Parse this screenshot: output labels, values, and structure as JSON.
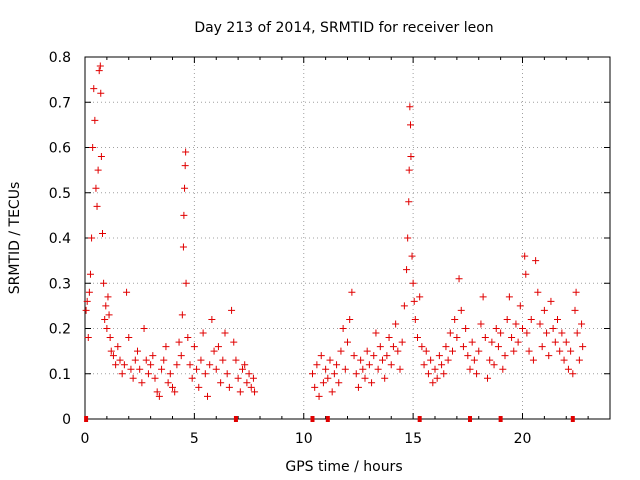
{
  "chart_data": {
    "type": "scatter",
    "title": "Day 213 of 2014, SRMTID for receiver leon",
    "xlabel": "GPS time / hours",
    "ylabel": "SRMTID / TECUs",
    "xlim": [
      0,
      24
    ],
    "ylim": [
      0,
      0.8
    ],
    "grid": true,
    "marker": "plus",
    "colors": {
      "series": "#e00000",
      "axis": "#000000",
      "grid": "#a0a0a0"
    },
    "x_ticks": [
      {
        "value": 0,
        "label": "0"
      },
      {
        "value": 5,
        "label": "5"
      },
      {
        "value": 10,
        "label": "10"
      },
      {
        "value": 15,
        "label": "15"
      },
      {
        "value": 20,
        "label": "20"
      }
    ],
    "y_ticks": [
      {
        "value": 0,
        "label": "0"
      },
      {
        "value": 0.1,
        "label": "0.1"
      },
      {
        "value": 0.2,
        "label": "0.2"
      },
      {
        "value": 0.3,
        "label": "0.3"
      },
      {
        "value": 0.4,
        "label": "0.4"
      },
      {
        "value": 0.5,
        "label": "0.5"
      },
      {
        "value": 0.6,
        "label": "0.6"
      },
      {
        "value": 0.7,
        "label": "0.7"
      },
      {
        "value": 0.8,
        "label": "0.8"
      }
    ],
    "baseline_markers_x": [
      0.05,
      6.9,
      10.4,
      11.1,
      15.3,
      17.6,
      19.0,
      22.3
    ],
    "series": [
      {
        "name": "SRMTID",
        "points": [
          [
            0.05,
            0.24
          ],
          [
            0.1,
            0.26
          ],
          [
            0.15,
            0.18
          ],
          [
            0.2,
            0.28
          ],
          [
            0.25,
            0.32
          ],
          [
            0.3,
            0.4
          ],
          [
            0.35,
            0.6
          ],
          [
            0.4,
            0.73
          ],
          [
            0.45,
            0.66
          ],
          [
            0.5,
            0.51
          ],
          [
            0.55,
            0.47
          ],
          [
            0.6,
            0.55
          ],
          [
            0.65,
            0.77
          ],
          [
            0.7,
            0.78
          ],
          [
            0.72,
            0.72
          ],
          [
            0.75,
            0.58
          ],
          [
            0.8,
            0.41
          ],
          [
            0.85,
            0.3
          ],
          [
            0.9,
            0.22
          ],
          [
            0.95,
            0.25
          ],
          [
            1.0,
            0.2
          ],
          [
            1.05,
            0.27
          ],
          [
            1.1,
            0.23
          ],
          [
            1.15,
            0.18
          ],
          [
            1.2,
            0.15
          ],
          [
            1.3,
            0.14
          ],
          [
            1.4,
            0.12
          ],
          [
            1.5,
            0.16
          ],
          [
            1.6,
            0.13
          ],
          [
            1.7,
            0.1
          ],
          [
            1.8,
            0.12
          ],
          [
            1.9,
            0.28
          ],
          [
            2.0,
            0.18
          ],
          [
            2.1,
            0.11
          ],
          [
            2.2,
            0.09
          ],
          [
            2.3,
            0.13
          ],
          [
            2.4,
            0.15
          ],
          [
            2.5,
            0.11
          ],
          [
            2.6,
            0.08
          ],
          [
            2.7,
            0.2
          ],
          [
            2.8,
            0.13
          ],
          [
            2.9,
            0.1
          ],
          [
            3.0,
            0.12
          ],
          [
            3.1,
            0.14
          ],
          [
            3.2,
            0.09
          ],
          [
            3.3,
            0.06
          ],
          [
            3.4,
            0.05
          ],
          [
            3.5,
            0.11
          ],
          [
            3.6,
            0.13
          ],
          [
            3.7,
            0.16
          ],
          [
            3.8,
            0.08
          ],
          [
            3.9,
            0.1
          ],
          [
            4.0,
            0.07
          ],
          [
            4.1,
            0.06
          ],
          [
            4.2,
            0.12
          ],
          [
            4.3,
            0.17
          ],
          [
            4.4,
            0.14
          ],
          [
            4.45,
            0.23
          ],
          [
            4.5,
            0.38
          ],
          [
            4.52,
            0.45
          ],
          [
            4.55,
            0.51
          ],
          [
            4.58,
            0.56
          ],
          [
            4.6,
            0.59
          ],
          [
            4.62,
            0.3
          ],
          [
            4.7,
            0.18
          ],
          [
            4.8,
            0.12
          ],
          [
            4.9,
            0.09
          ],
          [
            5.0,
            0.16
          ],
          [
            5.1,
            0.11
          ],
          [
            5.2,
            0.07
          ],
          [
            5.3,
            0.13
          ],
          [
            5.4,
            0.19
          ],
          [
            5.5,
            0.1
          ],
          [
            5.6,
            0.05
          ],
          [
            5.7,
            0.12
          ],
          [
            5.8,
            0.22
          ],
          [
            5.9,
            0.15
          ],
          [
            6.0,
            0.11
          ],
          [
            6.1,
            0.16
          ],
          [
            6.2,
            0.08
          ],
          [
            6.3,
            0.13
          ],
          [
            6.4,
            0.19
          ],
          [
            6.5,
            0.1
          ],
          [
            6.6,
            0.07
          ],
          [
            6.7,
            0.24
          ],
          [
            6.8,
            0.17
          ],
          [
            6.9,
            0.13
          ],
          [
            7.0,
            0.09
          ],
          [
            7.1,
            0.06
          ],
          [
            7.2,
            0.11
          ],
          [
            7.3,
            0.12
          ],
          [
            7.4,
            0.08
          ],
          [
            7.5,
            0.1
          ],
          [
            7.6,
            0.07
          ],
          [
            7.7,
            0.09
          ],
          [
            7.75,
            0.06
          ],
          [
            10.4,
            0.1
          ],
          [
            10.5,
            0.07
          ],
          [
            10.6,
            0.12
          ],
          [
            10.7,
            0.05
          ],
          [
            10.8,
            0.14
          ],
          [
            10.9,
            0.08
          ],
          [
            11.0,
            0.11
          ],
          [
            11.1,
            0.09
          ],
          [
            11.2,
            0.13
          ],
          [
            11.3,
            0.06
          ],
          [
            11.4,
            0.1
          ],
          [
            11.5,
            0.12
          ],
          [
            11.6,
            0.08
          ],
          [
            11.7,
            0.15
          ],
          [
            11.8,
            0.2
          ],
          [
            11.9,
            0.11
          ],
          [
            12.0,
            0.17
          ],
          [
            12.1,
            0.22
          ],
          [
            12.2,
            0.28
          ],
          [
            12.3,
            0.14
          ],
          [
            12.4,
            0.1
          ],
          [
            12.5,
            0.07
          ],
          [
            12.6,
            0.13
          ],
          [
            12.7,
            0.11
          ],
          [
            12.8,
            0.09
          ],
          [
            12.9,
            0.15
          ],
          [
            13.0,
            0.12
          ],
          [
            13.1,
            0.08
          ],
          [
            13.2,
            0.14
          ],
          [
            13.3,
            0.19
          ],
          [
            13.4,
            0.11
          ],
          [
            13.5,
            0.16
          ],
          [
            13.6,
            0.13
          ],
          [
            13.7,
            0.09
          ],
          [
            13.8,
            0.14
          ],
          [
            13.9,
            0.18
          ],
          [
            14.0,
            0.12
          ],
          [
            14.1,
            0.16
          ],
          [
            14.2,
            0.21
          ],
          [
            14.3,
            0.15
          ],
          [
            14.4,
            0.11
          ],
          [
            14.5,
            0.17
          ],
          [
            14.6,
            0.25
          ],
          [
            14.7,
            0.33
          ],
          [
            14.75,
            0.4
          ],
          [
            14.8,
            0.48
          ],
          [
            14.82,
            0.55
          ],
          [
            14.85,
            0.69
          ],
          [
            14.88,
            0.65
          ],
          [
            14.9,
            0.58
          ],
          [
            14.95,
            0.36
          ],
          [
            15.0,
            0.3
          ],
          [
            15.05,
            0.26
          ],
          [
            15.1,
            0.22
          ],
          [
            15.2,
            0.18
          ],
          [
            15.3,
            0.27
          ],
          [
            15.4,
            0.16
          ],
          [
            15.5,
            0.12
          ],
          [
            15.6,
            0.15
          ],
          [
            15.7,
            0.1
          ],
          [
            15.8,
            0.13
          ],
          [
            15.9,
            0.08
          ],
          [
            16.0,
            0.11
          ],
          [
            16.1,
            0.09
          ],
          [
            16.2,
            0.14
          ],
          [
            16.3,
            0.12
          ],
          [
            16.4,
            0.1
          ],
          [
            16.5,
            0.16
          ],
          [
            16.6,
            0.13
          ],
          [
            16.7,
            0.19
          ],
          [
            16.8,
            0.15
          ],
          [
            16.9,
            0.22
          ],
          [
            17.0,
            0.18
          ],
          [
            17.1,
            0.31
          ],
          [
            17.2,
            0.24
          ],
          [
            17.3,
            0.16
          ],
          [
            17.4,
            0.2
          ],
          [
            17.5,
            0.14
          ],
          [
            17.6,
            0.11
          ],
          [
            17.7,
            0.17
          ],
          [
            17.8,
            0.13
          ],
          [
            17.9,
            0.1
          ],
          [
            18.0,
            0.15
          ],
          [
            18.1,
            0.21
          ],
          [
            18.2,
            0.27
          ],
          [
            18.3,
            0.18
          ],
          [
            18.4,
            0.09
          ],
          [
            18.5,
            0.13
          ],
          [
            18.6,
            0.17
          ],
          [
            18.7,
            0.12
          ],
          [
            18.8,
            0.2
          ],
          [
            18.9,
            0.16
          ],
          [
            19.0,
            0.19
          ],
          [
            19.1,
            0.11
          ],
          [
            19.2,
            0.14
          ],
          [
            19.3,
            0.22
          ],
          [
            19.4,
            0.27
          ],
          [
            19.5,
            0.18
          ],
          [
            19.6,
            0.15
          ],
          [
            19.7,
            0.21
          ],
          [
            19.8,
            0.17
          ],
          [
            19.9,
            0.25
          ],
          [
            20.0,
            0.2
          ],
          [
            20.1,
            0.36
          ],
          [
            20.15,
            0.32
          ],
          [
            20.2,
            0.19
          ],
          [
            20.3,
            0.15
          ],
          [
            20.4,
            0.22
          ],
          [
            20.5,
            0.13
          ],
          [
            20.6,
            0.35
          ],
          [
            20.7,
            0.28
          ],
          [
            20.8,
            0.21
          ],
          [
            20.9,
            0.16
          ],
          [
            21.0,
            0.24
          ],
          [
            21.1,
            0.19
          ],
          [
            21.2,
            0.14
          ],
          [
            21.3,
            0.26
          ],
          [
            21.4,
            0.2
          ],
          [
            21.5,
            0.17
          ],
          [
            21.6,
            0.22
          ],
          [
            21.7,
            0.15
          ],
          [
            21.8,
            0.19
          ],
          [
            21.9,
            0.13
          ],
          [
            22.0,
            0.17
          ],
          [
            22.1,
            0.11
          ],
          [
            22.2,
            0.15
          ],
          [
            22.3,
            0.1
          ],
          [
            22.4,
            0.24
          ],
          [
            22.45,
            0.28
          ],
          [
            22.5,
            0.19
          ],
          [
            22.6,
            0.13
          ],
          [
            22.7,
            0.21
          ],
          [
            22.75,
            0.16
          ]
        ]
      }
    ]
  }
}
